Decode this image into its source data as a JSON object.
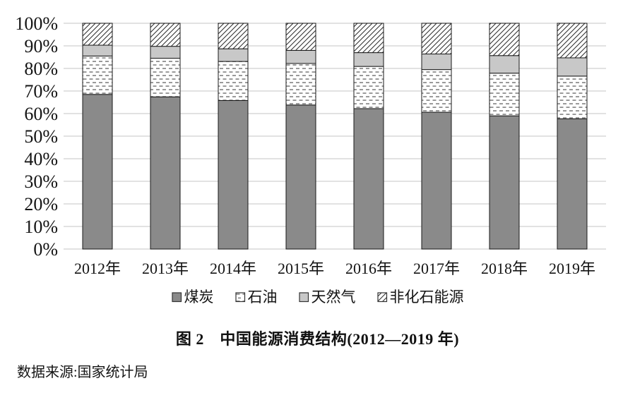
{
  "figure": {
    "title": "图 2　中国能源消费结构(2012—2019 年)",
    "source": "数据来源:国家统计局"
  },
  "legend": [
    {
      "label": "煤炭",
      "swatch": "coal-solid-dark-gray"
    },
    {
      "label": "石油",
      "swatch": "oil-dashed-pattern"
    },
    {
      "label": "天然气",
      "swatch": "gas-solid-light-gray"
    },
    {
      "label": "非化石能源",
      "swatch": "nonfossil-diagonal-hatch"
    }
  ],
  "colors": {
    "coal": "#8a8a8a",
    "gas": "#c8c8c8",
    "pattern_background": "#ffffff",
    "pattern_ink": "#8f8f8f",
    "hatch_ink": "#2b2b2b",
    "border": "#1a1a1a",
    "grid": "#d9d9d9",
    "text": "#141414"
  },
  "chart_data": {
    "type": "bar",
    "stacked": true,
    "title": "图 2　中国能源消费结构(2012—2019 年)",
    "xlabel": "",
    "ylabel": "",
    "ylim": [
      0,
      100
    ],
    "unit": "%",
    "grid": true,
    "legend_position": "bottom",
    "categories": [
      "2012年",
      "2013年",
      "2014年",
      "2015年",
      "2016年",
      "2017年",
      "2018年",
      "2019年"
    ],
    "yticks": [
      "0%",
      "10%",
      "20%",
      "30%",
      "40%",
      "50%",
      "60%",
      "70%",
      "80%",
      "90%",
      "100%"
    ],
    "series": [
      {
        "name": "煤炭",
        "key": "coal",
        "pattern": "solid",
        "color": "#8a8a8a",
        "values": [
          68.5,
          67.4,
          65.8,
          63.8,
          62.2,
          60.6,
          59.0,
          57.7
        ]
      },
      {
        "name": "石油",
        "key": "oil",
        "pattern": "dashes",
        "color": "#ffffff",
        "values": [
          17.0,
          17.1,
          17.3,
          18.4,
          18.7,
          18.9,
          18.9,
          18.9
        ]
      },
      {
        "name": "天然气",
        "key": "gas",
        "pattern": "solid",
        "color": "#c8c8c8",
        "values": [
          4.8,
          5.3,
          5.6,
          5.8,
          6.1,
          6.9,
          7.8,
          8.1
        ]
      },
      {
        "name": "非化石能源",
        "key": "nonfossil",
        "pattern": "hatch",
        "color": "#ffffff",
        "values": [
          9.7,
          10.2,
          11.3,
          12.0,
          13.0,
          13.6,
          14.3,
          15.3
        ]
      }
    ]
  }
}
